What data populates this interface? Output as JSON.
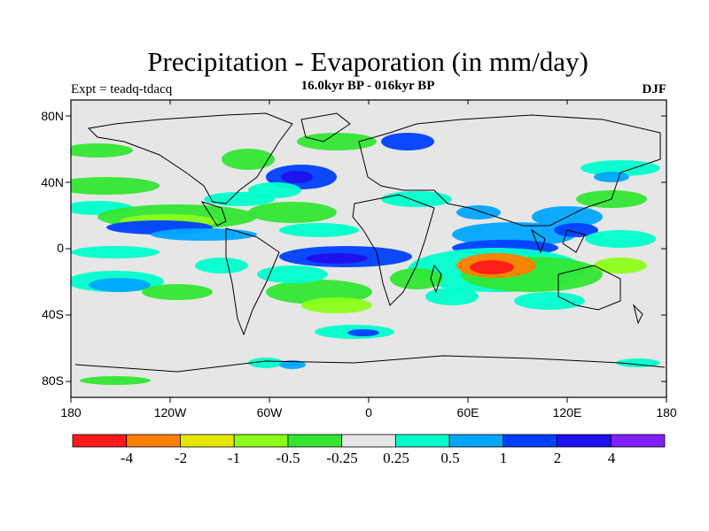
{
  "title": "Precipitation - Evaporation (in mm/day)",
  "subtitle": "16.0kyr BP - 016kyr BP",
  "experiment": "Expt = teadq-tdacq",
  "season": "DJF",
  "lat_ticks": [
    "80N",
    "40N",
    "0",
    "40S",
    "80S"
  ],
  "lon_ticks": [
    "180",
    "120W",
    "60W",
    "0",
    "60E",
    "120E",
    "180"
  ],
  "colorbar": {
    "labels": [
      "-4",
      "-2",
      "-1",
      "-0.5",
      "-0.25",
      "0.25",
      "0.5",
      "1",
      "2",
      "4"
    ],
    "colors": [
      "#ff1a1a",
      "#ff7f00",
      "#e6e600",
      "#8cff1a",
      "#33e633",
      "#e6e6e6",
      "#00ffcc",
      "#00a6ff",
      "#0040ff",
      "#2010ee",
      "#8020ff"
    ]
  }
}
